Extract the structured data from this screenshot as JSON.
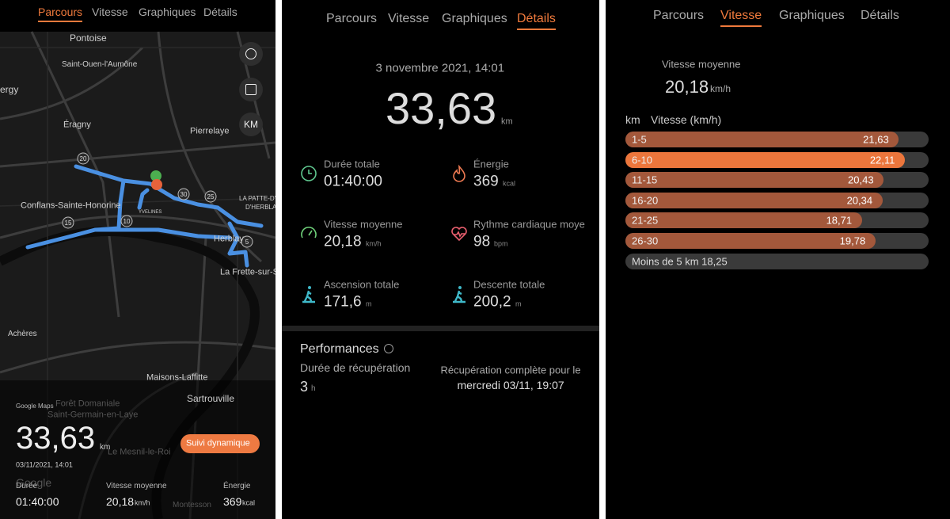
{
  "map_screen": {
    "tabs": [
      "Parcours",
      "Vitesse",
      "Graphiques",
      "Détails"
    ],
    "active_tab": 0,
    "map_labels": [
      "Pontoise",
      "Saint-Ouen-l'Aumône",
      "ergy",
      "Éragny",
      "Pierrelaye",
      "Conflans-Sainte-Honorine",
      "LA PATTE-D'OIE",
      "D'HERBLAY",
      "Herblay",
      "La Frette-sur-S",
      "Achères",
      "Maisons-Laffitte",
      "Sartrouville",
      "Forêt Domaniale",
      "Saint-Germain-en-Laye",
      "Le Mesnil-le-Roi",
      "Montesson",
      "YVELINES"
    ],
    "route_markers": [
      "20",
      "30",
      "25",
      "15",
      "10",
      "5"
    ],
    "units_button": "KM",
    "attribution": "Google Maps",
    "google": "Google",
    "distance": {
      "value": "33,63",
      "unit": "km"
    },
    "datetime": "03/11/2021, 14:01",
    "button": "Suivi dynamique",
    "stats": [
      {
        "label": "Durée",
        "value": "01:40:00"
      },
      {
        "label": "Vitesse moyenne",
        "value": "20,18",
        "unit": "km/h"
      },
      {
        "label": "Énergie",
        "value": "369",
        "unit": "kcal"
      }
    ]
  },
  "details_screen": {
    "tabs": [
      "Parcours",
      "Vitesse",
      "Graphiques",
      "Détails"
    ],
    "active_tab": 3,
    "datetime": "3 novembre 2021, 14:01",
    "distance": {
      "value": "33,63",
      "unit": "km"
    },
    "metrics": [
      {
        "label": "Durée totale",
        "value": "01:40:00"
      },
      {
        "label": "Énergie",
        "value": "369",
        "unit": "kcal"
      },
      {
        "label": "Vitesse moyenne",
        "value": "20,18",
        "unit": "km/h"
      },
      {
        "label": "Rythme cardiaque moye",
        "value": "98",
        "unit": "bpm"
      },
      {
        "label": "Ascension totale",
        "value": "171,6",
        "unit": "m"
      },
      {
        "label": "Descente totale",
        "value": "200,2",
        "unit": "m"
      }
    ],
    "performances": {
      "title": "Performances",
      "recovery_label": "Durée de récupération",
      "recovery_value": "3",
      "recovery_unit": "h",
      "complete_label": "Récupération complète pour le",
      "complete_value": "mercredi 03/11, 19:07"
    }
  },
  "speed_screen": {
    "tabs": [
      "Parcours",
      "Vitesse",
      "Graphiques",
      "Détails"
    ],
    "active_tab": 1,
    "avg_label": "Vitesse moyenne",
    "avg_value": "20,18",
    "avg_unit": "km/h",
    "chart_data": {
      "type": "bar",
      "x_label": "km",
      "y_label": "Vitesse (km/h)",
      "categories": [
        "1-5",
        "6-10",
        "11-15",
        "16-20",
        "21-25",
        "26-30"
      ],
      "values": [
        21.63,
        22.11,
        20.43,
        20.34,
        18.71,
        19.78
      ],
      "value_labels": [
        "21,63",
        "22,11",
        "20,43",
        "20,34",
        "18,71",
        "19,78"
      ],
      "xlim": [
        0,
        24
      ],
      "color": "#a3583b",
      "highlight_color": "#ec763c",
      "highlight": 1,
      "footer": "Moins de 5 km 18,25"
    }
  }
}
